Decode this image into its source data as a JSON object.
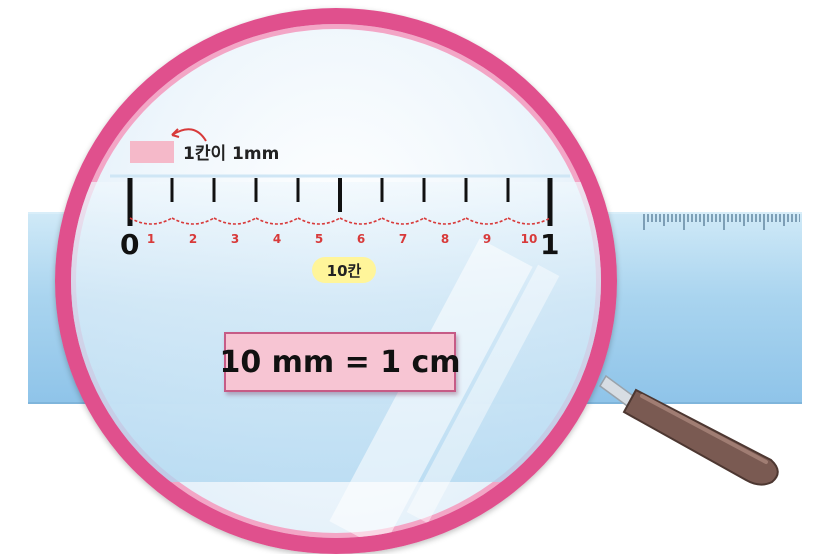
{
  "legend": {
    "label": "1칸이 1mm",
    "swatch_color": "#f5b9c9",
    "arrow_color": "#d83a3a"
  },
  "scale": {
    "start_label": "0",
    "end_label": "1",
    "mm_labels": [
      "1",
      "2",
      "3",
      "4",
      "5",
      "6",
      "7",
      "8",
      "9",
      "10"
    ],
    "span_label": "10칸",
    "arc_color": "#d83a3a"
  },
  "equation": {
    "text": "10 mm = 1 cm"
  },
  "colors": {
    "lens_rim": "#e0508d",
    "ruler": "#a9d4ef",
    "handle": "#7a5a52",
    "equation_bg": "#f7c5d3",
    "badge_bg": "#fff59a"
  }
}
